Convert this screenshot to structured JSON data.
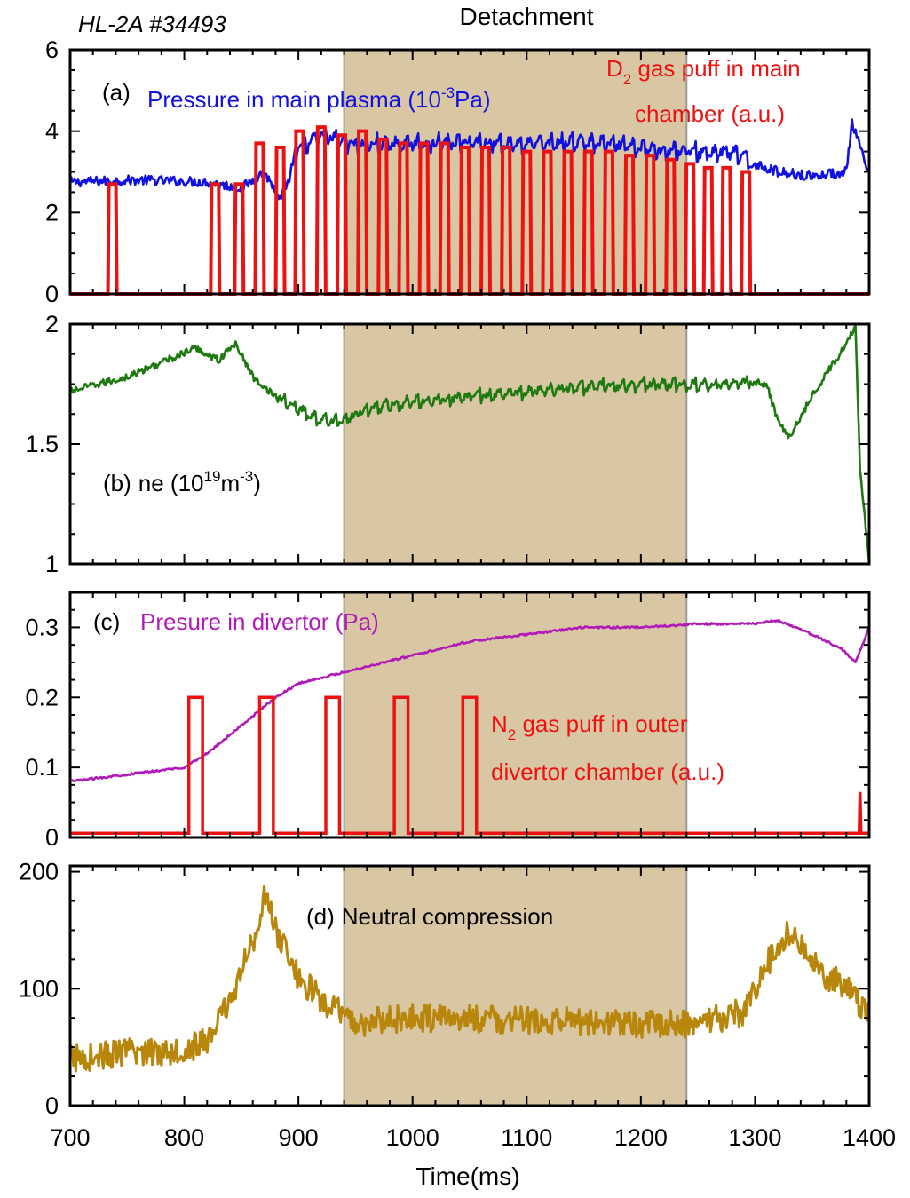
{
  "figure": {
    "shot_label": "HL-2A #34493",
    "detachment_label": "Detachment",
    "xlabel": "Time(ms)"
  },
  "colors": {
    "blue": "#1010e0",
    "red": "#ee1111",
    "green": "#1e7a10",
    "magenta": "#b01ab8",
    "gold": "#b8860b",
    "band": "#d9c7a3"
  },
  "chart_data": [
    {
      "type": "line",
      "panel": "a",
      "xlim": [
        700,
        1400
      ],
      "ylim": [
        0,
        6
      ],
      "yticks": [
        0,
        2,
        4,
        6
      ],
      "xticks": [
        700,
        800,
        900,
        1000,
        1100,
        1200,
        1300,
        1400
      ],
      "shaded_region": [
        940,
        1240
      ],
      "annotations": {
        "panel_letter": "(a)",
        "series1_label": "Pressure in main plasma (10",
        "series1_sup": "-3",
        "series1_unit": "Pa)",
        "series2_line1_pre": "D",
        "series2_line1_sub": "2",
        "series2_line1_post": " gas puff in main",
        "series2_line2": "chamber (a.u.)"
      },
      "series": [
        {
          "color_key": "blue",
          "points": [
            [
              700,
              2.75
            ],
            [
              760,
              2.8
            ],
            [
              820,
              2.75
            ],
            [
              850,
              2.6
            ],
            [
              870,
              3.0
            ],
            [
              885,
              2.3
            ],
            [
              900,
              3.6
            ],
            [
              920,
              3.9
            ],
            [
              950,
              3.7
            ],
            [
              1000,
              3.7
            ],
            [
              1050,
              3.75
            ],
            [
              1100,
              3.7
            ],
            [
              1150,
              3.75
            ],
            [
              1200,
              3.6
            ],
            [
              1250,
              3.5
            ],
            [
              1280,
              3.5
            ],
            [
              1300,
              3.2
            ],
            [
              1320,
              3.0
            ],
            [
              1350,
              2.9
            ],
            [
              1380,
              3.0
            ],
            [
              1385,
              4.2
            ],
            [
              1400,
              2.9
            ]
          ]
        },
        {
          "color_key": "red",
          "type": "pulses",
          "pulse_times": [
            737,
            827,
            848,
            866,
            884,
            901,
            920,
            938,
            956,
            974,
            992,
            1010,
            1028,
            1046,
            1064,
            1082,
            1100,
            1118,
            1136,
            1154,
            1172,
            1190,
            1208,
            1226,
            1243,
            1259,
            1275,
            1292
          ],
          "pulse_heights": [
            2.7,
            2.7,
            2.7,
            3.7,
            3.6,
            4.0,
            4.1,
            3.9,
            4.0,
            3.8,
            3.7,
            3.7,
            3.7,
            3.6,
            3.6,
            3.6,
            3.5,
            3.5,
            3.5,
            3.5,
            3.5,
            3.4,
            3.4,
            3.3,
            3.2,
            3.1,
            3.1,
            3.0
          ]
        }
      ]
    },
    {
      "type": "line",
      "panel": "b",
      "xlim": [
        700,
        1400
      ],
      "ylim": [
        1,
        2
      ],
      "yticks": [
        1,
        1.5,
        2
      ],
      "xticks": [
        700,
        800,
        900,
        1000,
        1100,
        1200,
        1300,
        1400
      ],
      "shaded_region": [
        940,
        1240
      ],
      "annotations": {
        "panel_letter": "(b)",
        "label_pre": "ne (10",
        "label_sup1": "19",
        "label_mid": "m",
        "label_sup2": "-3",
        "label_post": ")"
      },
      "series": [
        {
          "color_key": "green",
          "points": [
            [
              700,
              1.72
            ],
            [
              750,
              1.78
            ],
            [
              800,
              1.88
            ],
            [
              810,
              1.9
            ],
            [
              830,
              1.85
            ],
            [
              845,
              1.92
            ],
            [
              860,
              1.78
            ],
            [
              880,
              1.7
            ],
            [
              900,
              1.65
            ],
            [
              920,
              1.6
            ],
            [
              940,
              1.6
            ],
            [
              960,
              1.65
            ],
            [
              1000,
              1.68
            ],
            [
              1050,
              1.7
            ],
            [
              1100,
              1.72
            ],
            [
              1150,
              1.74
            ],
            [
              1200,
              1.75
            ],
            [
              1250,
              1.75
            ],
            [
              1300,
              1.76
            ],
            [
              1310,
              1.75
            ],
            [
              1320,
              1.6
            ],
            [
              1330,
              1.53
            ],
            [
              1350,
              1.7
            ],
            [
              1380,
              1.92
            ],
            [
              1388,
              2.0
            ],
            [
              1392,
              1.4
            ],
            [
              1400,
              1.0
            ]
          ]
        }
      ]
    },
    {
      "type": "line",
      "panel": "c",
      "xlim": [
        700,
        1400
      ],
      "ylim": [
        0,
        0.35
      ],
      "yticks": [
        0,
        0.1,
        0.2,
        0.3
      ],
      "ytick_labels": [
        "0",
        "0.1",
        "0.2",
        "0.3"
      ],
      "xticks": [
        700,
        800,
        900,
        1000,
        1100,
        1200,
        1300,
        1400
      ],
      "shaded_region": [
        940,
        1240
      ],
      "annotations": {
        "panel_letter": "(c)",
        "series1_label": "Presure in divertor (Pa)",
        "series2_line1_pre": "N",
        "series2_line1_sub": "2",
        "series2_line1_post": " gas puff in outer",
        "series2_line2": "divertor chamber (a.u.)"
      },
      "series": [
        {
          "color_key": "magenta",
          "points": [
            [
              700,
              0.08
            ],
            [
              750,
              0.09
            ],
            [
              800,
              0.1
            ],
            [
              820,
              0.12
            ],
            [
              850,
              0.16
            ],
            [
              880,
              0.2
            ],
            [
              900,
              0.22
            ],
            [
              950,
              0.24
            ],
            [
              1000,
              0.26
            ],
            [
              1050,
              0.28
            ],
            [
              1100,
              0.29
            ],
            [
              1150,
              0.3
            ],
            [
              1200,
              0.3
            ],
            [
              1250,
              0.305
            ],
            [
              1300,
              0.305
            ],
            [
              1320,
              0.31
            ],
            [
              1350,
              0.29
            ],
            [
              1375,
              0.27
            ],
            [
              1388,
              0.25
            ],
            [
              1400,
              0.3
            ]
          ]
        },
        {
          "color_key": "red",
          "type": "pulses",
          "baseline": 0.006,
          "pulse_times": [
            810,
            872,
            930,
            990,
            1050
          ],
          "pulse_width": 12,
          "pulse_height": 0.2,
          "end_spike": [
            1392,
            0.065
          ]
        }
      ]
    },
    {
      "type": "line",
      "panel": "d",
      "xlim": [
        700,
        1400
      ],
      "ylim": [
        0,
        205
      ],
      "yticks": [
        0,
        100,
        200
      ],
      "xticks": [
        700,
        800,
        900,
        1000,
        1100,
        1200,
        1300,
        1400
      ],
      "xtick_labels": [
        "700",
        "800",
        "900",
        "1000",
        "1100",
        "1200",
        "1300",
        "1400"
      ],
      "shaded_region": [
        940,
        1240
      ],
      "annotations": {
        "panel_letter": "(d)",
        "series1_label": "Neutral compression"
      },
      "series": [
        {
          "color_key": "gold",
          "points": [
            [
              700,
              40
            ],
            [
              750,
              45
            ],
            [
              800,
              48
            ],
            [
              820,
              55
            ],
            [
              840,
              90
            ],
            [
              860,
              140
            ],
            [
              870,
              180
            ],
            [
              880,
              150
            ],
            [
              900,
              110
            ],
            [
              920,
              90
            ],
            [
              950,
              70
            ],
            [
              1000,
              75
            ],
            [
              1050,
              75
            ],
            [
              1100,
              72
            ],
            [
              1150,
              72
            ],
            [
              1200,
              70
            ],
            [
              1250,
              70
            ],
            [
              1290,
              80
            ],
            [
              1310,
              120
            ],
            [
              1330,
              150
            ],
            [
              1350,
              120
            ],
            [
              1380,
              100
            ],
            [
              1400,
              80
            ]
          ]
        }
      ]
    }
  ]
}
